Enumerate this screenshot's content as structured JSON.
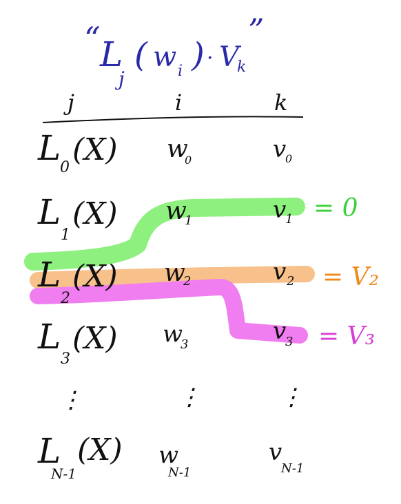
{
  "title": {
    "open_quote": "“",
    "L": "L",
    "sub_j": "j",
    "paren_open": "(",
    "w": "w",
    "sub_i": "i",
    "paren_close": ")",
    "dot": "·",
    "V": "V",
    "sub_k": "k",
    "close_quote": "”"
  },
  "headers": {
    "j": "j",
    "i": "i",
    "k": "k"
  },
  "rows": [
    {
      "L": "L",
      "sub": "0",
      "arg": "(X)",
      "w": "w",
      "w_sub": "0",
      "v": "v",
      "v_sub": "0"
    },
    {
      "L": "L",
      "sub": "1",
      "arg": "(X)",
      "w": "w",
      "w_sub": "1",
      "v": "v",
      "v_sub": "1"
    },
    {
      "L": "L",
      "sub": "2",
      "arg": "(X)",
      "w": "w",
      "w_sub": "2",
      "v": "v",
      "v_sub": "2"
    },
    {
      "L": "L",
      "sub": "3",
      "arg": "(X)",
      "w": "w",
      "w_sub": "3",
      "v": "v",
      "v_sub": "3"
    },
    {
      "L": "L",
      "sub": "N-1",
      "arg": "(X)",
      "w": "w",
      "w_sub": "N-1",
      "v": "v",
      "v_sub": "N-1"
    }
  ],
  "dots": "⋮",
  "results": [
    {
      "text": "= 0",
      "color": "#3ad23a"
    },
    {
      "text": "= V₂",
      "color": "#f08a1c"
    },
    {
      "text": "= V₃",
      "color": "#d640d6"
    }
  ],
  "colors": {
    "title_ink": "#2a2aa8",
    "ink": "#111111",
    "green": "#8ef07e",
    "orange": "#f8c08a",
    "magenta": "#f07ef0"
  }
}
